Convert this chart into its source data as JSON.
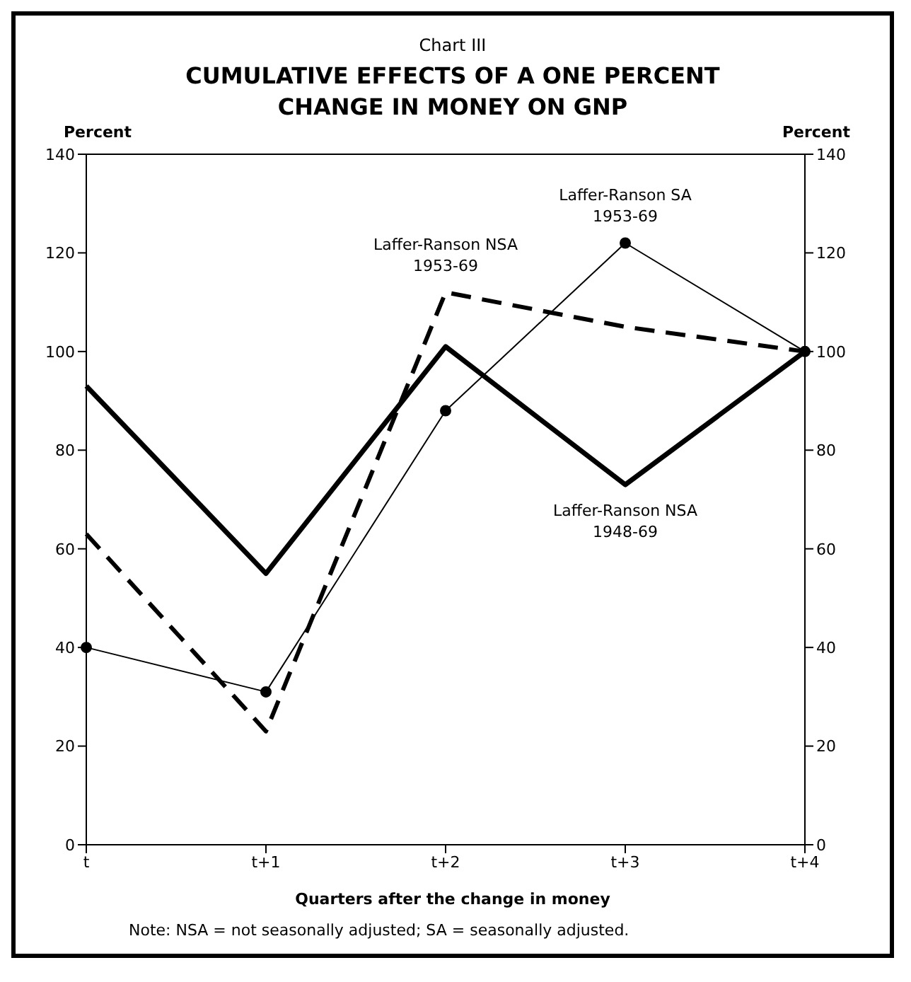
{
  "chart_data": {
    "type": "line",
    "subtitle": "Chart III",
    "title": "CUMULATIVE EFFECTS OF A ONE PERCENT CHANGE IN MONEY ON GNP",
    "xlabel": "Quarters after the change in money",
    "ylabel": "Percent",
    "y2label": "Percent",
    "categories": [
      "t",
      "t+1",
      "t+2",
      "t+3",
      "t+4"
    ],
    "series": [
      {
        "name": "Laffer-Ranson NSA 1948-69",
        "color": "#000000",
        "line_style": "solid",
        "marker": "none",
        "values": [
          93,
          55,
          101,
          73,
          100
        ]
      },
      {
        "name": "Laffer-Ranson NSA 1953-69",
        "color": "#000000",
        "line_style": "dashed",
        "marker": "none",
        "values": [
          63,
          23,
          112,
          105,
          100
        ]
      },
      {
        "name": "Laffer-Ranson SA 1953-69",
        "color": "#000000",
        "line_style": "solid",
        "marker": "circle",
        "values": [
          40,
          31,
          88,
          122,
          100
        ]
      }
    ],
    "ylim": [
      0,
      140
    ],
    "yticks": [
      0,
      20,
      40,
      60,
      80,
      100,
      120,
      140
    ],
    "y2lim": [
      0,
      140
    ],
    "y2ticks": [
      0,
      20,
      40,
      60,
      80,
      100,
      120,
      140
    ],
    "grid": false,
    "legend": false,
    "annotations": [
      "Note: NSA = not seasonally adjusted; SA = seasonally adjusted."
    ]
  }
}
